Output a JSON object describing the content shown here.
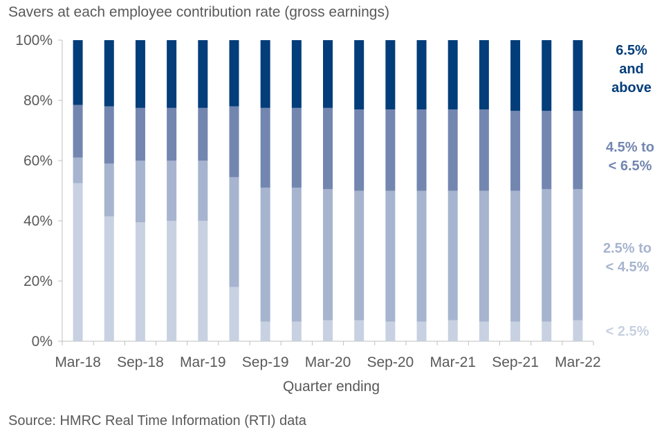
{
  "title": "Savers at each employee contribution rate (gross earnings)",
  "source": "Source: HMRC Real Time Information (RTI) data",
  "colors": {
    "lt_2_5": "#c8d1e1",
    "r2_5_4_5": "#a7b4cf",
    "r4_5_6_5": "#7286b0",
    "ge_6_5": "#033d7a",
    "axis": "#bfbfbf",
    "text": "#595959"
  },
  "chart_data": {
    "type": "bar",
    "stacked": true,
    "title": "Savers at each employee contribution rate (gross earnings)",
    "xlabel": "Quarter ending",
    "ylabel": "",
    "ylim": [
      0,
      100
    ],
    "yticks": [
      "0%",
      "20%",
      "40%",
      "60%",
      "80%",
      "100%"
    ],
    "categories": [
      "Mar-18",
      "Jun-18",
      "Sep-18",
      "Dec-18",
      "Mar-19",
      "Jun-19",
      "Sep-19",
      "Dec-19",
      "Mar-20",
      "Jun-20",
      "Sep-20",
      "Dec-20",
      "Mar-21",
      "Jun-21",
      "Sep-21",
      "Dec-21",
      "Mar-22"
    ],
    "xtick_labels": [
      "Mar-18",
      "Sep-18",
      "Mar-19",
      "Sep-19",
      "Mar-20",
      "Sep-20",
      "Mar-21",
      "Sep-21",
      "Mar-22"
    ],
    "series": [
      {
        "name": "< 2.5%",
        "color_key": "lt_2_5",
        "values": [
          52.5,
          41.5,
          39.5,
          40,
          40,
          18,
          6.5,
          6.5,
          7,
          7,
          6.5,
          6.5,
          7,
          6.5,
          6.5,
          6.5,
          7
        ]
      },
      {
        "name": "2.5% to < 4.5%",
        "color_key": "r2_5_4_5",
        "values": [
          8.5,
          17.5,
          20.5,
          20,
          20,
          36.5,
          44.5,
          44.5,
          43.5,
          43,
          43.5,
          43.5,
          43,
          43.5,
          43.5,
          44,
          43.5
        ]
      },
      {
        "name": "4.5% to < 6.5%",
        "color_key": "r4_5_6_5",
        "values": [
          17.5,
          19,
          17.5,
          17.5,
          17.5,
          23.5,
          26.5,
          26.5,
          27,
          27,
          27,
          27,
          27,
          27,
          26.5,
          26,
          26
        ]
      },
      {
        "name": "6.5% and above",
        "color_key": "ge_6_5",
        "values": [
          21.5,
          22,
          22.5,
          22.5,
          22.5,
          22,
          22.5,
          22.5,
          22.5,
          23,
          23,
          23,
          23,
          23,
          23.5,
          23.5,
          23.5
        ]
      }
    ],
    "legend": {
      "placement": "right",
      "ge_6_5": [
        "6.5%",
        "and",
        "above"
      ],
      "r4_5_6_5": [
        "4.5% to",
        "< 6.5%"
      ],
      "r2_5_4_5": [
        "2.5% to",
        "< 4.5%"
      ],
      "lt_2_5": [
        "< 2.5%"
      ]
    }
  }
}
